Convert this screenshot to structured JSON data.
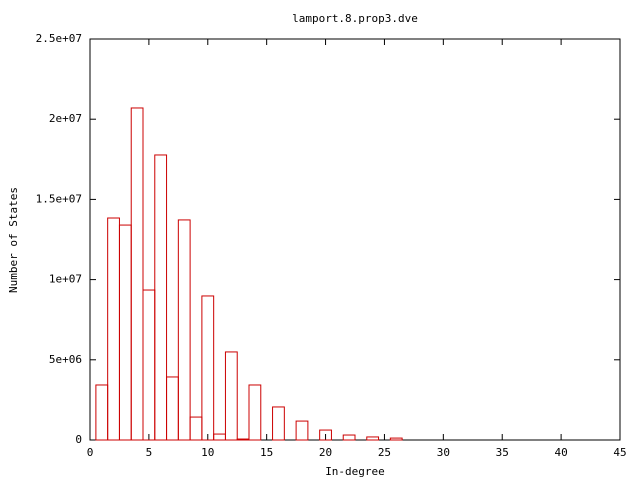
{
  "chart_data": {
    "type": "bar",
    "title": "lamport.8.prop3.dve",
    "x_label": "In-degree",
    "y_label": "Number of States",
    "x": [
      1,
      2,
      3,
      4,
      5,
      6,
      7,
      8,
      9,
      10,
      11,
      12,
      13,
      14,
      16,
      18,
      20,
      22,
      24,
      26
    ],
    "values": [
      3430000,
      13840000,
      13400000,
      20700000,
      9350000,
      17770000,
      3930000,
      13720000,
      1430000,
      8980000,
      370000,
      5490000,
      60000,
      3430000,
      2060000,
      1180000,
      620000,
      310000,
      190000,
      120000
    ],
    "color": "#cc0000",
    "xlim": [
      0,
      45
    ],
    "xticks": [
      0,
      5,
      10,
      15,
      20,
      25,
      30,
      35,
      40,
      45
    ],
    "ylim": [
      0,
      25000000
    ],
    "yticks": [
      0,
      {
        "value": 5000000,
        "label": "5e+06"
      },
      {
        "value": 10000000,
        "label": "1e+07"
      },
      {
        "value": 15000000,
        "label": "1.5e+07"
      },
      {
        "value": 20000000,
        "label": "2e+07"
      },
      {
        "value": 25000000,
        "label": "2.5e+07"
      }
    ]
  }
}
